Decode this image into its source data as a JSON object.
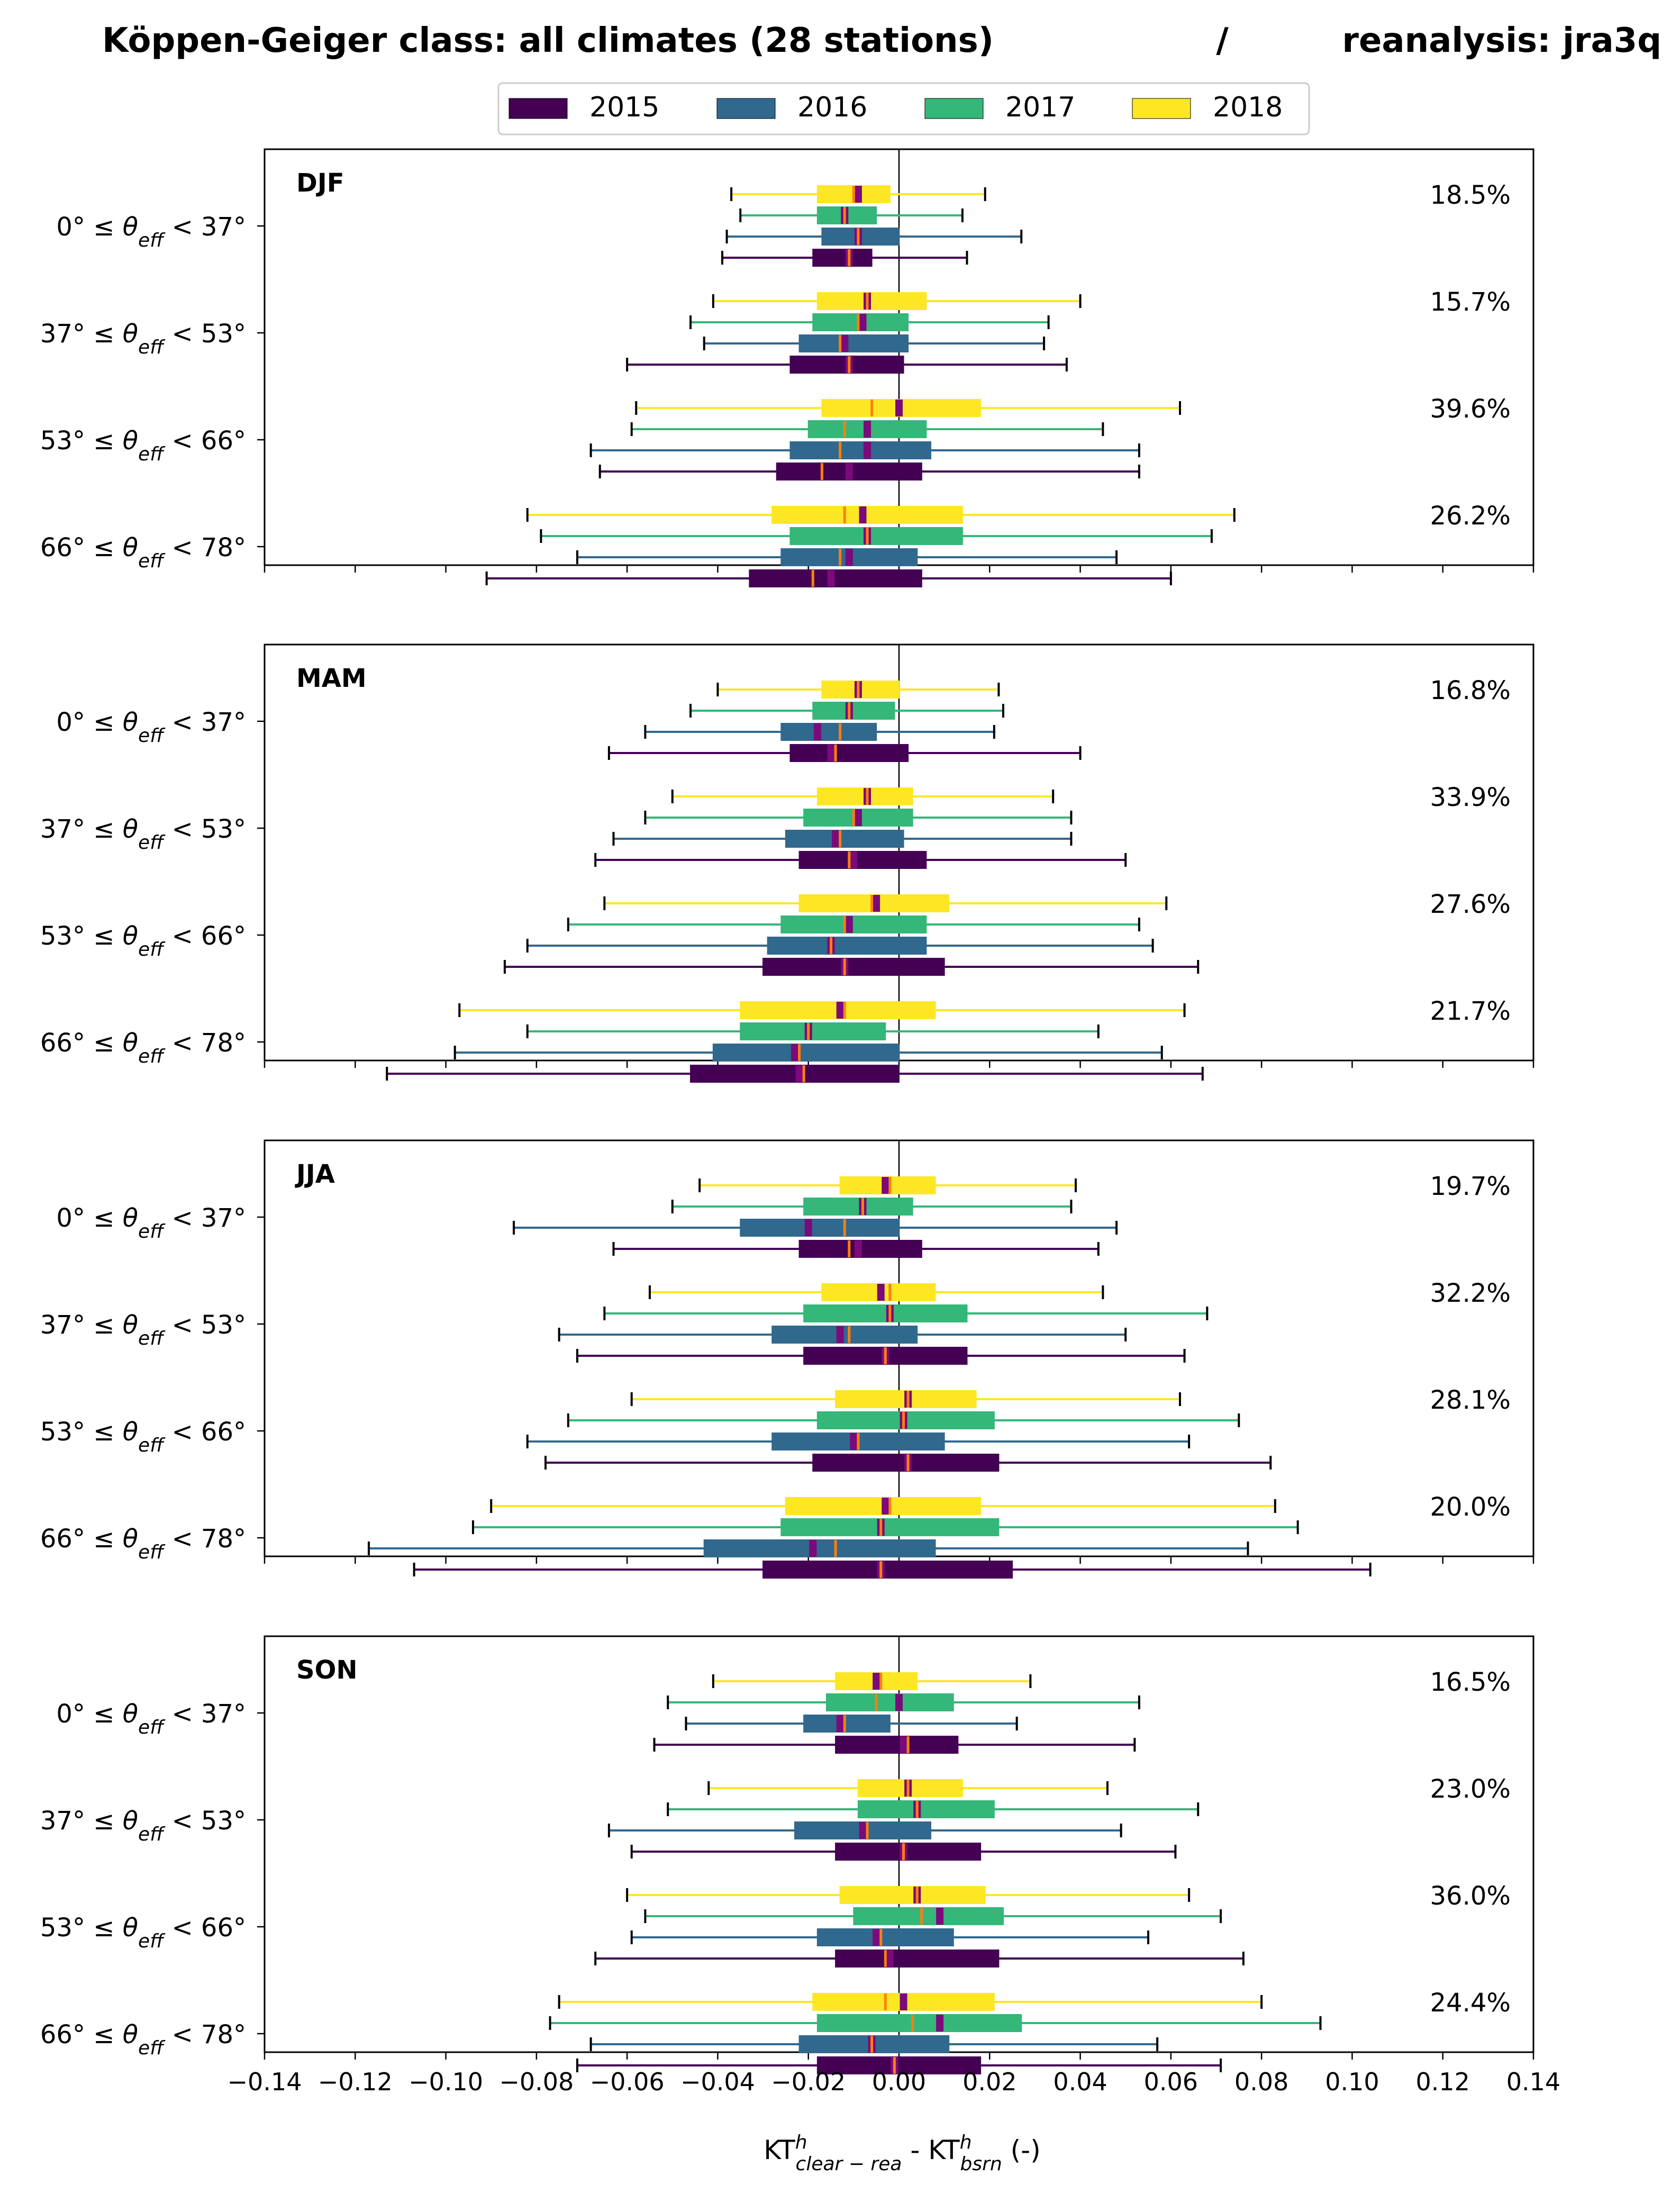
{
  "chart_data": {
    "type": "boxplot",
    "title_left": "Köppen-Geiger class: all climates (28 stations)",
    "title_sep": "/",
    "title_right": "reanalysis: jra3q",
    "legend": [
      "2015",
      "2016",
      "2017",
      "2018"
    ],
    "colors": {
      "2015": "#440154",
      "2016": "#31688e",
      "2017": "#35b779",
      "2018": "#fde725",
      "median": "#ff7f0e",
      "mean": "#7b0a7b",
      "axis": "#000000"
    },
    "xlim": [
      -0.14,
      0.14
    ],
    "xticks": [
      "−0.14",
      "−0.12",
      "−0.10",
      "−0.08",
      "−0.06",
      "−0.04",
      "−0.02",
      "0.00",
      "0.02",
      "0.04",
      "0.06",
      "0.08",
      "0.10",
      "0.12",
      "0.14"
    ],
    "xlabel": {
      "main": "KT",
      "sup1": "h",
      "sub1": "clear − rea",
      "mid": " - KT",
      "sup2": "h",
      "sub2": "bsrn",
      "end": " (-)"
    },
    "rows": [
      {
        "lo": "0°",
        "hi": "37°"
      },
      {
        "lo": "37°",
        "hi": "53°"
      },
      {
        "lo": "53°",
        "hi": "66°"
      },
      {
        "lo": "66°",
        "hi": "78°"
      }
    ],
    "row_label_parts": {
      "le": " ≤ ",
      "theta": "θ",
      "eff": "eff",
      "lt": " < "
    },
    "panels": [
      {
        "season": "DJF",
        "percents": [
          "18.5%",
          "15.7%",
          "39.6%",
          "26.2%"
        ],
        "boxes": [
          [
            {
              "wl": -0.039,
              "q1": -0.019,
              "med": -0.011,
              "mean": -0.011,
              "q3": -0.006,
              "wh": 0.015
            },
            {
              "wl": -0.038,
              "q1": -0.017,
              "med": -0.009,
              "mean": -0.009,
              "q3": 0.0,
              "wh": 0.027
            },
            {
              "wl": -0.035,
              "q1": -0.018,
              "med": -0.012,
              "mean": -0.012,
              "q3": -0.005,
              "wh": 0.014
            },
            {
              "wl": -0.037,
              "q1": -0.018,
              "med": -0.01,
              "mean": -0.009,
              "q3": -0.002,
              "wh": 0.019
            }
          ],
          [
            {
              "wl": -0.06,
              "q1": -0.024,
              "med": -0.011,
              "mean": -0.011,
              "q3": 0.001,
              "wh": 0.037
            },
            {
              "wl": -0.043,
              "q1": -0.022,
              "med": -0.013,
              "mean": -0.012,
              "q3": 0.002,
              "wh": 0.032
            },
            {
              "wl": -0.046,
              "q1": -0.019,
              "med": -0.009,
              "mean": -0.008,
              "q3": 0.002,
              "wh": 0.033
            },
            {
              "wl": -0.041,
              "q1": -0.018,
              "med": -0.007,
              "mean": -0.007,
              "q3": 0.006,
              "wh": 0.04
            }
          ],
          [
            {
              "wl": -0.066,
              "q1": -0.027,
              "med": -0.017,
              "mean": -0.011,
              "q3": 0.005,
              "wh": 0.053
            },
            {
              "wl": -0.068,
              "q1": -0.024,
              "med": -0.013,
              "mean": -0.007,
              "q3": 0.007,
              "wh": 0.053
            },
            {
              "wl": -0.059,
              "q1": -0.02,
              "med": -0.012,
              "mean": -0.007,
              "q3": 0.006,
              "wh": 0.045
            },
            {
              "wl": -0.058,
              "q1": -0.017,
              "med": -0.006,
              "mean": 0.0,
              "q3": 0.018,
              "wh": 0.062
            }
          ],
          [
            {
              "wl": -0.091,
              "q1": -0.033,
              "med": -0.019,
              "mean": -0.015,
              "q3": 0.005,
              "wh": 0.06
            },
            {
              "wl": -0.071,
              "q1": -0.026,
              "med": -0.013,
              "mean": -0.011,
              "q3": 0.004,
              "wh": 0.048
            },
            {
              "wl": -0.079,
              "q1": -0.024,
              "med": -0.007,
              "mean": -0.007,
              "q3": 0.014,
              "wh": 0.069
            },
            {
              "wl": -0.082,
              "q1": -0.028,
              "med": -0.012,
              "mean": -0.008,
              "q3": 0.014,
              "wh": 0.074
            }
          ]
        ]
      },
      {
        "season": "MAM",
        "percents": [
          "16.8%",
          "33.9%",
          "27.6%",
          "21.7%"
        ],
        "boxes": [
          [
            {
              "wl": -0.064,
              "q1": -0.024,
              "med": -0.014,
              "mean": -0.015,
              "q3": 0.002,
              "wh": 0.04
            },
            {
              "wl": -0.056,
              "q1": -0.026,
              "med": -0.013,
              "mean": -0.018,
              "q3": -0.005,
              "wh": 0.021
            },
            {
              "wl": -0.046,
              "q1": -0.019,
              "med": -0.011,
              "mean": -0.011,
              "q3": -0.001,
              "wh": 0.023
            },
            {
              "wl": -0.04,
              "q1": -0.017,
              "med": -0.009,
              "mean": -0.009,
              "q3": 0.0,
              "wh": 0.022
            }
          ],
          [
            {
              "wl": -0.067,
              "q1": -0.022,
              "med": -0.011,
              "mean": -0.01,
              "q3": 0.006,
              "wh": 0.05
            },
            {
              "wl": -0.063,
              "q1": -0.025,
              "med": -0.013,
              "mean": -0.014,
              "q3": 0.001,
              "wh": 0.038
            },
            {
              "wl": -0.056,
              "q1": -0.021,
              "med": -0.01,
              "mean": -0.009,
              "q3": 0.003,
              "wh": 0.038
            },
            {
              "wl": -0.05,
              "q1": -0.018,
              "med": -0.007,
              "mean": -0.007,
              "q3": 0.003,
              "wh": 0.034
            }
          ],
          [
            {
              "wl": -0.087,
              "q1": -0.03,
              "med": -0.012,
              "mean": -0.012,
              "q3": 0.01,
              "wh": 0.066
            },
            {
              "wl": -0.082,
              "q1": -0.029,
              "med": -0.015,
              "mean": -0.015,
              "q3": 0.006,
              "wh": 0.056
            },
            {
              "wl": -0.073,
              "q1": -0.026,
              "med": -0.012,
              "mean": -0.011,
              "q3": 0.006,
              "wh": 0.053
            },
            {
              "wl": -0.065,
              "q1": -0.022,
              "med": -0.006,
              "mean": -0.005,
              "q3": 0.011,
              "wh": 0.059
            }
          ],
          [
            {
              "wl": -0.113,
              "q1": -0.046,
              "med": -0.021,
              "mean": -0.022,
              "q3": 0.0,
              "wh": 0.067
            },
            {
              "wl": -0.098,
              "q1": -0.041,
              "med": -0.022,
              "mean": -0.023,
              "q3": 0.0,
              "wh": 0.058
            },
            {
              "wl": -0.082,
              "q1": -0.035,
              "med": -0.02,
              "mean": -0.02,
              "q3": -0.003,
              "wh": 0.044
            },
            {
              "wl": -0.097,
              "q1": -0.035,
              "med": -0.012,
              "mean": -0.013,
              "q3": 0.008,
              "wh": 0.063
            }
          ]
        ]
      },
      {
        "season": "JJA",
        "percents": [
          "19.7%",
          "32.2%",
          "28.1%",
          "20.0%"
        ],
        "boxes": [
          [
            {
              "wl": -0.063,
              "q1": -0.022,
              "med": -0.011,
              "mean": -0.009,
              "q3": 0.005,
              "wh": 0.044
            },
            {
              "wl": -0.085,
              "q1": -0.035,
              "med": -0.012,
              "mean": -0.02,
              "q3": 0.0,
              "wh": 0.048
            },
            {
              "wl": -0.05,
              "q1": -0.021,
              "med": -0.008,
              "mean": -0.008,
              "q3": 0.003,
              "wh": 0.038
            },
            {
              "wl": -0.044,
              "q1": -0.013,
              "med": -0.002,
              "mean": -0.003,
              "q3": 0.008,
              "wh": 0.039
            }
          ],
          [
            {
              "wl": -0.071,
              "q1": -0.021,
              "med": -0.003,
              "mean": -0.003,
              "q3": 0.015,
              "wh": 0.063
            },
            {
              "wl": -0.075,
              "q1": -0.028,
              "med": -0.011,
              "mean": -0.013,
              "q3": 0.004,
              "wh": 0.05
            },
            {
              "wl": -0.065,
              "q1": -0.021,
              "med": -0.002,
              "mean": -0.002,
              "q3": 0.015,
              "wh": 0.068
            },
            {
              "wl": -0.055,
              "q1": -0.017,
              "med": -0.002,
              "mean": -0.004,
              "q3": 0.008,
              "wh": 0.045
            }
          ],
          [
            {
              "wl": -0.078,
              "q1": -0.019,
              "med": 0.002,
              "mean": 0.002,
              "q3": 0.022,
              "wh": 0.082
            },
            {
              "wl": -0.082,
              "q1": -0.028,
              "med": -0.009,
              "mean": -0.01,
              "q3": 0.01,
              "wh": 0.064
            },
            {
              "wl": -0.073,
              "q1": -0.018,
              "med": 0.001,
              "mean": 0.001,
              "q3": 0.021,
              "wh": 0.075
            },
            {
              "wl": -0.059,
              "q1": -0.014,
              "med": 0.002,
              "mean": 0.002,
              "q3": 0.017,
              "wh": 0.062
            }
          ],
          [
            {
              "wl": -0.107,
              "q1": -0.03,
              "med": -0.004,
              "mean": -0.004,
              "q3": 0.025,
              "wh": 0.104
            },
            {
              "wl": -0.117,
              "q1": -0.043,
              "med": -0.014,
              "mean": -0.019,
              "q3": 0.008,
              "wh": 0.077
            },
            {
              "wl": -0.094,
              "q1": -0.026,
              "med": -0.004,
              "mean": -0.004,
              "q3": 0.022,
              "wh": 0.088
            },
            {
              "wl": -0.09,
              "q1": -0.025,
              "med": -0.002,
              "mean": -0.003,
              "q3": 0.018,
              "wh": 0.083
            }
          ]
        ]
      },
      {
        "season": "SON",
        "percents": [
          "16.5%",
          "23.0%",
          "36.0%",
          "24.4%"
        ],
        "boxes": [
          [
            {
              "wl": -0.054,
              "q1": -0.014,
              "med": 0.002,
              "mean": 0.001,
              "q3": 0.013,
              "wh": 0.052
            },
            {
              "wl": -0.047,
              "q1": -0.021,
              "med": -0.012,
              "mean": -0.013,
              "q3": -0.002,
              "wh": 0.026
            },
            {
              "wl": -0.051,
              "q1": -0.016,
              "med": -0.005,
              "mean": 0.0,
              "q3": 0.012,
              "wh": 0.053
            },
            {
              "wl": -0.041,
              "q1": -0.014,
              "med": -0.004,
              "mean": -0.005,
              "q3": 0.004,
              "wh": 0.029
            }
          ],
          [
            {
              "wl": -0.059,
              "q1": -0.014,
              "med": 0.001,
              "mean": 0.001,
              "q3": 0.018,
              "wh": 0.061
            },
            {
              "wl": -0.064,
              "q1": -0.023,
              "med": -0.007,
              "mean": -0.008,
              "q3": 0.007,
              "wh": 0.049
            },
            {
              "wl": -0.051,
              "q1": -0.009,
              "med": 0.004,
              "mean": 0.004,
              "q3": 0.021,
              "wh": 0.066
            },
            {
              "wl": -0.042,
              "q1": -0.009,
              "med": 0.002,
              "mean": 0.002,
              "q3": 0.014,
              "wh": 0.046
            }
          ],
          [
            {
              "wl": -0.067,
              "q1": -0.014,
              "med": -0.003,
              "mean": -0.002,
              "q3": 0.022,
              "wh": 0.076
            },
            {
              "wl": -0.059,
              "q1": -0.018,
              "med": -0.004,
              "mean": -0.005,
              "q3": 0.012,
              "wh": 0.055
            },
            {
              "wl": -0.056,
              "q1": -0.01,
              "med": 0.005,
              "mean": 0.009,
              "q3": 0.023,
              "wh": 0.071
            },
            {
              "wl": -0.06,
              "q1": -0.013,
              "med": 0.004,
              "mean": 0.004,
              "q3": 0.019,
              "wh": 0.064
            }
          ],
          [
            {
              "wl": -0.071,
              "q1": -0.018,
              "med": -0.001,
              "mean": -0.001,
              "q3": 0.018,
              "wh": 0.071
            },
            {
              "wl": -0.068,
              "q1": -0.022,
              "med": -0.006,
              "mean": -0.006,
              "q3": 0.011,
              "wh": 0.057
            },
            {
              "wl": -0.077,
              "q1": -0.018,
              "med": 0.003,
              "mean": 0.009,
              "q3": 0.027,
              "wh": 0.093
            },
            {
              "wl": -0.075,
              "q1": -0.019,
              "med": -0.003,
              "mean": 0.001,
              "q3": 0.021,
              "wh": 0.08
            }
          ]
        ]
      }
    ]
  }
}
